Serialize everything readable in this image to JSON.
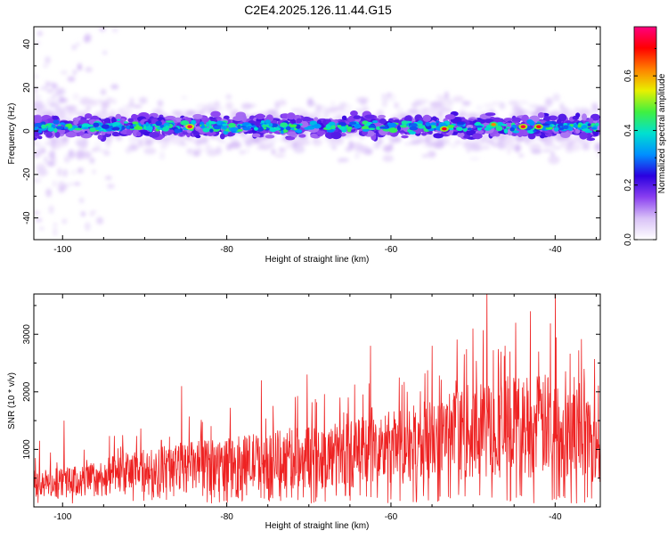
{
  "title": "C2E4.2025.126.11.44.G15",
  "colors": {
    "axis": "#000000",
    "snr_line": "#ee2222",
    "spectro_core": "#3b1fd6",
    "spectro_halo": "#c9b3f5"
  },
  "chart_data": [
    {
      "type": "heatmap",
      "xlabel": "Height of straight line (km)",
      "ylabel": "Frequency (Hz)",
      "xlim": [
        -103.5,
        -34.5
      ],
      "ylim": [
        -50,
        48
      ],
      "xticks": [
        -100,
        -80,
        -60,
        -40
      ],
      "yticks": [
        -40,
        -20,
        0,
        20,
        40
      ],
      "colorbar": {
        "label": "Normalized spectral amplitude",
        "range": [
          0,
          0.78
        ],
        "ticks": [
          0,
          0.2,
          0.4,
          0.6
        ],
        "tick_labels": [
          "0.0",
          "0.2",
          "0.4",
          "0.6"
        ],
        "colormap": [
          "#ffffff",
          "#d9c2f7",
          "#8a3ff0",
          "#2a00e0",
          "#0090ff",
          "#00e0d0",
          "#40f040",
          "#e8f000",
          "#ff8000",
          "#ff0000",
          "#ff0080"
        ]
      },
      "band_center_hz": 2,
      "band_halfwidth_hz": 7,
      "hotspots": [
        {
          "x": -84.5,
          "y": 2,
          "value": 0.75
        },
        {
          "x": -53.5,
          "y": 1,
          "value": 0.72
        },
        {
          "x": -43.9,
          "y": 2,
          "value": 0.74
        },
        {
          "x": -42.0,
          "y": 2,
          "value": 0.72
        },
        {
          "x": -47.5,
          "y": 3,
          "value": 0.62
        }
      ]
    },
    {
      "type": "line",
      "xlabel": "Height of straight line (km)",
      "ylabel": "SNR (10 * v/v)",
      "xlim": [
        -103.5,
        -34.5
      ],
      "ylim": [
        0,
        3700
      ],
      "xticks": [
        -100,
        -80,
        -60,
        -40
      ],
      "yticks": [
        1000,
        2000,
        3000
      ],
      "envelope": [
        {
          "x": -103.5,
          "y": 400
        },
        {
          "x": -98,
          "y": 450
        },
        {
          "x": -92,
          "y": 600
        },
        {
          "x": -86,
          "y": 700
        },
        {
          "x": -80,
          "y": 750
        },
        {
          "x": -74,
          "y": 850
        },
        {
          "x": -68,
          "y": 900
        },
        {
          "x": -62,
          "y": 1000
        },
        {
          "x": -56,
          "y": 1150
        },
        {
          "x": -50,
          "y": 1350
        },
        {
          "x": -44,
          "y": 1450
        },
        {
          "x": -40,
          "y": 1450
        },
        {
          "x": -34.5,
          "y": 1200
        }
      ],
      "peaks": [
        {
          "x": -102.8,
          "y": 1150
        },
        {
          "x": -99.8,
          "y": 1500
        },
        {
          "x": -85.5,
          "y": 2100
        },
        {
          "x": -75.8,
          "y": 2200
        },
        {
          "x": -70.2,
          "y": 2300
        },
        {
          "x": -66.2,
          "y": 1900
        },
        {
          "x": -62.5,
          "y": 2800
        },
        {
          "x": -58.0,
          "y": 2000
        },
        {
          "x": -55.0,
          "y": 2800
        },
        {
          "x": -50.0,
          "y": 3100
        },
        {
          "x": -48.3,
          "y": 3800
        },
        {
          "x": -45.5,
          "y": 2700
        },
        {
          "x": -44.8,
          "y": 3200
        },
        {
          "x": -43.0,
          "y": 3400
        },
        {
          "x": -42.0,
          "y": 2700
        },
        {
          "x": -40.0,
          "y": 3850
        },
        {
          "x": -36.5,
          "y": 2400
        }
      ]
    }
  ]
}
